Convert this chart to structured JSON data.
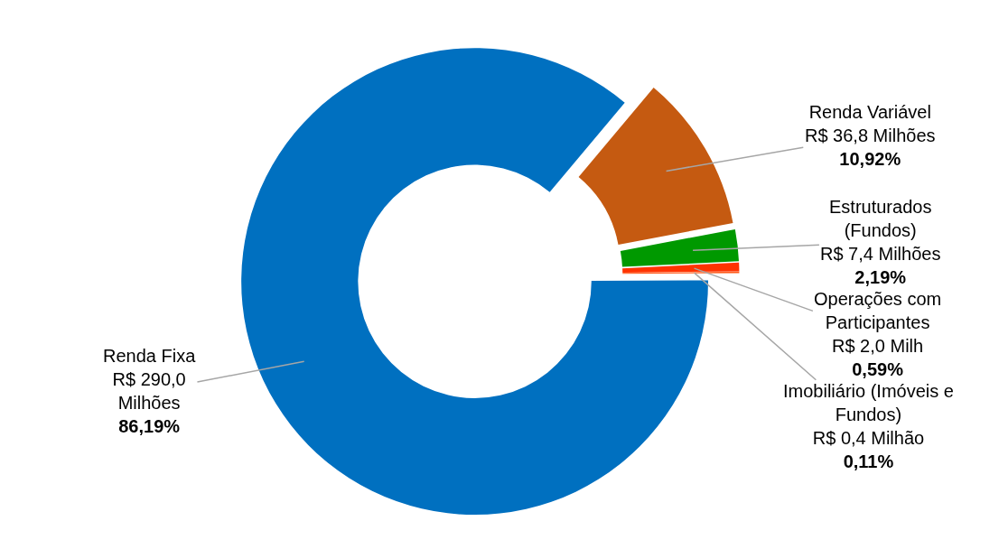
{
  "chart_data": {
    "type": "donut",
    "categories": [
      "Renda Variável",
      "Estruturados\n(Fundos)",
      "Operações com\nParticipantes",
      "Imobiliário (Imóveis e\nFundos)",
      "Renda Fixa"
    ],
    "values": [
      10.92,
      2.19,
      0.59,
      0.11,
      86.19
    ],
    "value_labels": [
      "R$ 36,8 Milhões\n10,92%",
      "R$ 7,4 Milhões\n2,19%",
      "R$ 2,0 Milh\n0,59%",
      "R$ 0,4 Milhão\n0,11%",
      "R$ 290,0\nMilhões\n86,19%"
    ],
    "colors": [
      "#c55a11",
      "#009900",
      "#ff3300",
      "#ff5a1a",
      "#0070c0"
    ],
    "legend": false
  }
}
